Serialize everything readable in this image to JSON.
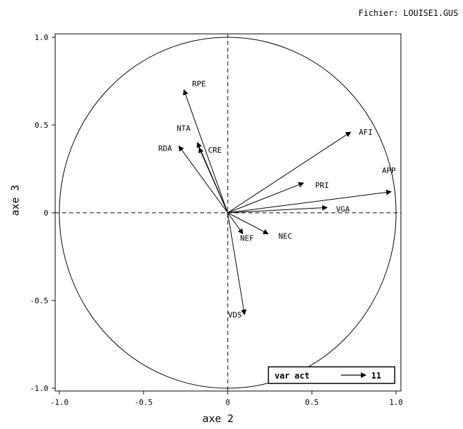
{
  "file_label": "Fichier: LOUISE1.GUS",
  "chart_data": {
    "type": "scatter",
    "title": "",
    "xlabel": "axe 2",
    "ylabel": "axe 3",
    "xlim": [
      -1.0,
      1.0
    ],
    "ylim": [
      -1.0,
      1.0
    ],
    "x_ticks": [
      -1.0,
      -0.5,
      0,
      0.5,
      1.0
    ],
    "y_ticks": [
      -1.0,
      -0.5,
      0,
      0.5,
      1.0
    ],
    "x_tick_labels": [
      "-1.0",
      "-0.5",
      "0",
      "0.5",
      "1.0"
    ],
    "y_tick_labels": [
      "-1.0",
      "-0.5",
      "0",
      "0.5",
      "1.0"
    ],
    "grid": false,
    "unit_circle": true,
    "zero_lines": "dashed",
    "vectors": [
      {
        "name": "RPE",
        "x": -0.26,
        "y": 0.7
      },
      {
        "name": "NTA",
        "x": -0.18,
        "y": 0.4
      },
      {
        "name": "CRE",
        "x": -0.17,
        "y": 0.37
      },
      {
        "name": "RDA",
        "x": -0.29,
        "y": 0.38
      },
      {
        "name": "AFI",
        "x": 0.73,
        "y": 0.46
      },
      {
        "name": "APP",
        "x": 0.97,
        "y": 0.12
      },
      {
        "name": "PRI",
        "x": 0.45,
        "y": 0.17
      },
      {
        "name": "VGA",
        "x": 0.59,
        "y": 0.03
      },
      {
        "name": "NEF",
        "x": 0.09,
        "y": -0.12
      },
      {
        "name": "NEC",
        "x": 0.24,
        "y": -0.12
      },
      {
        "name": "VDS",
        "x": 0.1,
        "y": -0.58
      }
    ],
    "legend": {
      "text": "var act",
      "count": "11",
      "position": "bottom-right"
    }
  }
}
